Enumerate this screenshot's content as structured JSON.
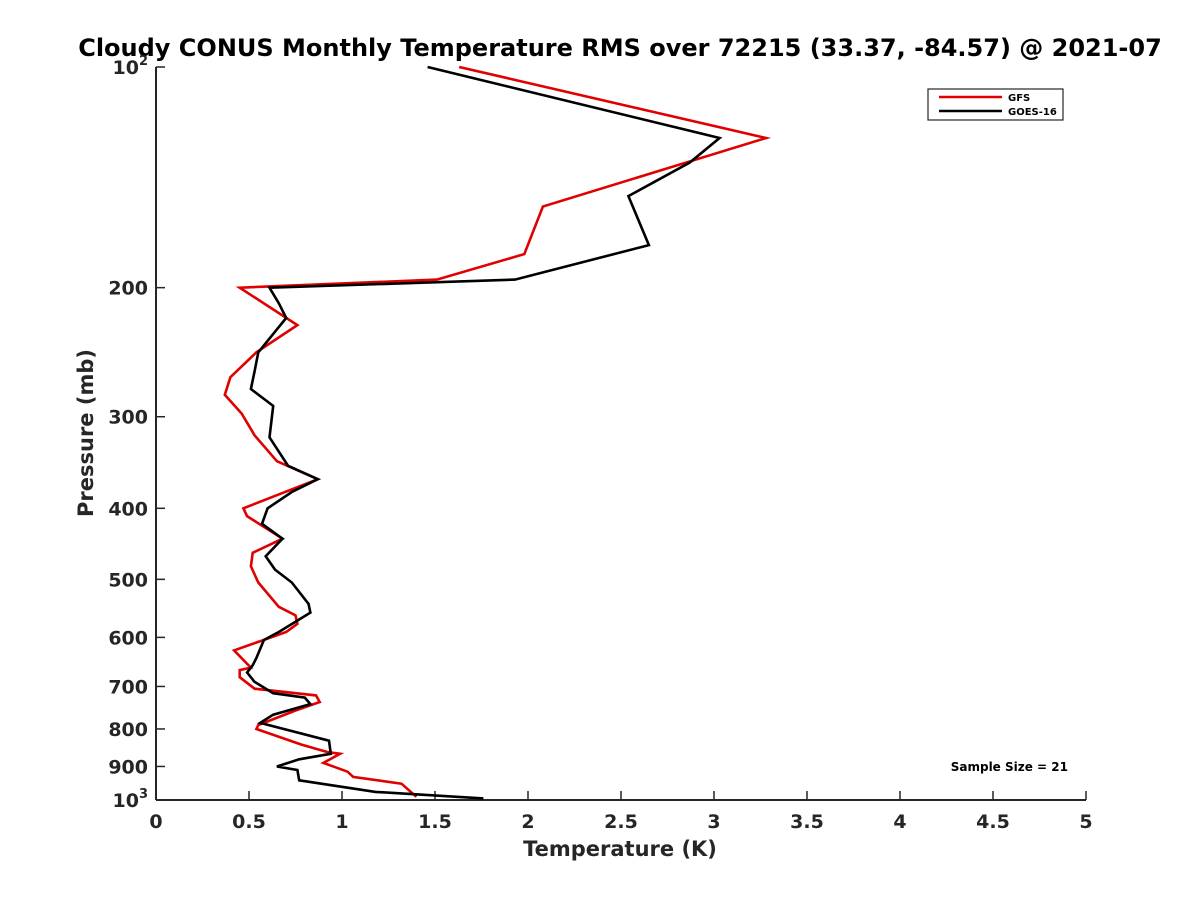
{
  "chart_data": {
    "type": "line",
    "title": "Cloudy CONUS Monthly Temperature RMS over 72215 (33.37, -84.57) @ 2021-07",
    "xlabel": "Temperature (K)",
    "ylabel": "Pressure (mb)",
    "xlim": [
      0,
      5
    ],
    "ylim": [
      100,
      1000
    ],
    "y_scale": "log",
    "y_reversed": true,
    "grid": false,
    "legend_position": "top-right",
    "x_ticks": [
      {
        "value": 0,
        "label": "0"
      },
      {
        "value": 0.5,
        "label": "0.5"
      },
      {
        "value": 1,
        "label": "1"
      },
      {
        "value": 1.5,
        "label": "1.5"
      },
      {
        "value": 2,
        "label": "2"
      },
      {
        "value": 2.5,
        "label": "2.5"
      },
      {
        "value": 3,
        "label": "3"
      },
      {
        "value": 3.5,
        "label": "3.5"
      },
      {
        "value": 4,
        "label": "4"
      },
      {
        "value": 4.5,
        "label": "4.5"
      },
      {
        "value": 5,
        "label": "5"
      }
    ],
    "y_ticks": [
      {
        "value": 100,
        "base": "10",
        "exp": "2"
      },
      {
        "value": 200,
        "label": "200"
      },
      {
        "value": 300,
        "label": "300"
      },
      {
        "value": 400,
        "label": "400"
      },
      {
        "value": 500,
        "label": "500"
      },
      {
        "value": 600,
        "label": "600"
      },
      {
        "value": 700,
        "label": "700"
      },
      {
        "value": 800,
        "label": "800"
      },
      {
        "value": 900,
        "label": "900"
      },
      {
        "value": 1000,
        "base": "10",
        "exp": "3"
      }
    ],
    "series": [
      {
        "name": "GFS",
        "color": "#e00000",
        "points": [
          [
            1.63,
            100
          ],
          [
            3.28,
            125
          ],
          [
            2.08,
            155
          ],
          [
            1.98,
            180
          ],
          [
            1.51,
            195
          ],
          [
            0.45,
            200
          ],
          [
            0.76,
            225
          ],
          [
            0.54,
            245
          ],
          [
            0.4,
            265
          ],
          [
            0.37,
            280
          ],
          [
            0.46,
            297
          ],
          [
            0.53,
            318
          ],
          [
            0.65,
            345
          ],
          [
            0.87,
            365
          ],
          [
            0.47,
            400
          ],
          [
            0.49,
            410
          ],
          [
            0.68,
            440
          ],
          [
            0.52,
            460
          ],
          [
            0.51,
            480
          ],
          [
            0.55,
            505
          ],
          [
            0.66,
            545
          ],
          [
            0.75,
            560
          ],
          [
            0.76,
            575
          ],
          [
            0.7,
            590
          ],
          [
            0.42,
            625
          ],
          [
            0.51,
            660
          ],
          [
            0.45,
            665
          ],
          [
            0.45,
            680
          ],
          [
            0.53,
            705
          ],
          [
            0.86,
            720
          ],
          [
            0.88,
            735
          ],
          [
            0.75,
            755
          ],
          [
            0.55,
            790
          ],
          [
            0.54,
            800
          ],
          [
            0.78,
            840
          ],
          [
            0.92,
            860
          ],
          [
            0.99,
            865
          ],
          [
            0.9,
            890
          ],
          [
            1.03,
            915
          ],
          [
            1.06,
            930
          ],
          [
            1.32,
            950
          ],
          [
            1.4,
            990
          ]
        ]
      },
      {
        "name": "GOES-16",
        "color": "#000000",
        "points": [
          [
            1.46,
            100
          ],
          [
            3.03,
            125
          ],
          [
            2.87,
            135
          ],
          [
            2.54,
            150
          ],
          [
            2.65,
            175
          ],
          [
            1.93,
            195
          ],
          [
            0.61,
            200
          ],
          [
            0.66,
            210
          ],
          [
            0.7,
            220
          ],
          [
            0.55,
            245
          ],
          [
            0.53,
            260
          ],
          [
            0.51,
            275
          ],
          [
            0.63,
            290
          ],
          [
            0.61,
            320
          ],
          [
            0.71,
            350
          ],
          [
            0.87,
            365
          ],
          [
            0.73,
            380
          ],
          [
            0.6,
            400
          ],
          [
            0.57,
            420
          ],
          [
            0.68,
            440
          ],
          [
            0.59,
            465
          ],
          [
            0.64,
            485
          ],
          [
            0.73,
            505
          ],
          [
            0.82,
            540
          ],
          [
            0.83,
            555
          ],
          [
            0.66,
            590
          ],
          [
            0.58,
            605
          ],
          [
            0.54,
            640
          ],
          [
            0.52,
            655
          ],
          [
            0.49,
            670
          ],
          [
            0.53,
            690
          ],
          [
            0.63,
            715
          ],
          [
            0.8,
            725
          ],
          [
            0.83,
            740
          ],
          [
            0.63,
            765
          ],
          [
            0.56,
            785
          ],
          [
            0.93,
            830
          ],
          [
            0.94,
            865
          ],
          [
            0.77,
            880
          ],
          [
            0.65,
            900
          ],
          [
            0.76,
            910
          ],
          [
            0.77,
            940
          ],
          [
            1.18,
            975
          ],
          [
            1.76,
            995
          ]
        ]
      }
    ],
    "annotation": "Sample Size = 21"
  }
}
